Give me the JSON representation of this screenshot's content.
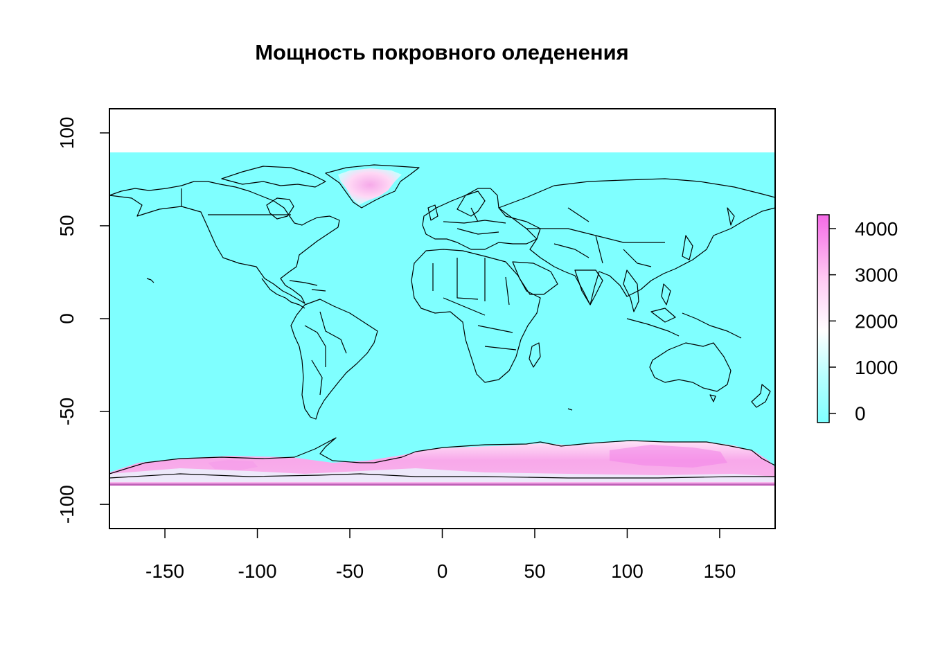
{
  "title": "Мощность покровного оледенения",
  "chart_data": {
    "type": "heatmap",
    "title": "Мощность покровного оледенения",
    "xlabel": "",
    "ylabel": "",
    "xlim": [
      -180,
      180
    ],
    "ylim": [
      -113,
      113
    ],
    "x_ticks": [
      "-150",
      "-100",
      "-50",
      "0",
      "50",
      "100",
      "150"
    ],
    "x_tick_values": [
      -150,
      -100,
      -50,
      0,
      50,
      100,
      150
    ],
    "y_ticks": [
      "100",
      "50",
      "0",
      "-50",
      "-100"
    ],
    "y_tick_values": [
      100,
      50,
      0,
      -50,
      -100
    ],
    "raster_extent": {
      "lon": [
        -180,
        180
      ],
      "lat": [
        -90,
        90
      ]
    },
    "colorbar": {
      "ticks": [
        "0",
        "1000",
        "2000",
        "3000",
        "4000"
      ],
      "tick_values": [
        0,
        1000,
        2000,
        3000,
        4000
      ],
      "range": [
        -200,
        4300
      ],
      "colors": [
        "#7fffff",
        "#b6ffff",
        "#ffffff",
        "#ffc8f2",
        "#f46ae6"
      ]
    },
    "ice_regions": [
      {
        "name": "Greenland",
        "max_value": 3000
      },
      {
        "name": "Antarctica",
        "max_value": 4200
      }
    ],
    "colors": {
      "ocean_land_zero": "#7fffff",
      "ice_mid": "#ffffff",
      "ice_high": "#f46ae6",
      "borders": "#000000"
    }
  }
}
